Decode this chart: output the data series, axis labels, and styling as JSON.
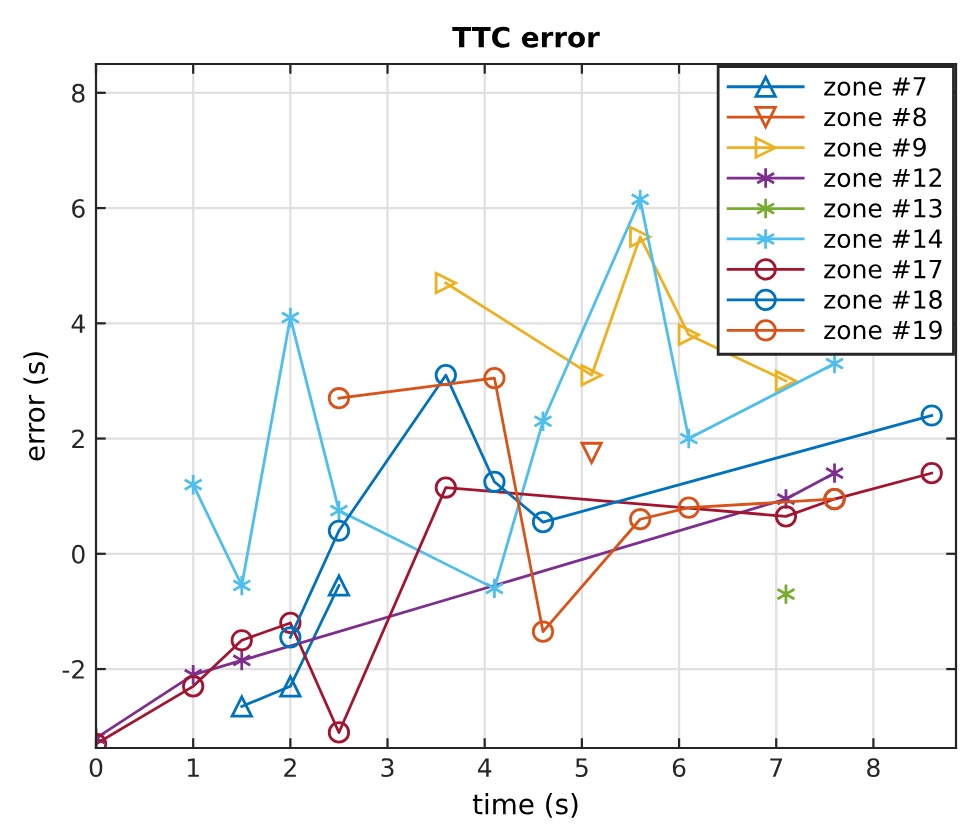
{
  "chart_data": {
    "type": "line",
    "title": "TTC error",
    "xlabel": "time (s)",
    "ylabel": "error (s)",
    "xlim": [
      0,
      8.85
    ],
    "ylim": [
      -3.37,
      8.5
    ],
    "xticks": [
      0,
      1,
      2,
      3,
      4,
      5,
      6,
      7,
      8
    ],
    "yticks": [
      -2,
      0,
      2,
      4,
      6,
      8
    ],
    "grid": true,
    "legend": "top right",
    "series": [
      {
        "name": "zone #7",
        "color": "#0072bd",
        "marker": "triangle",
        "x": [
          1.5,
          2,
          2.5
        ],
        "values": [
          -2.65,
          -2.3,
          -0.55
        ]
      },
      {
        "name": "zone #8",
        "color": "#d95319",
        "marker": "triangle-down",
        "x": [
          5.1
        ],
        "values": [
          1.75
        ]
      },
      {
        "name": "zone #9",
        "color": "#edb120",
        "marker": "triangle-right",
        "x": [
          3.6,
          5.1,
          5.6,
          6.1,
          7.1
        ],
        "values": [
          4.7,
          3.1,
          5.5,
          3.8,
          3.0
        ]
      },
      {
        "name": "zone #12",
        "color": "#7e2f8e",
        "marker": "cross",
        "x": [
          0,
          1,
          1.5,
          7.1,
          7.6
        ],
        "values": [
          -3.2,
          -2.1,
          -1.85,
          0.95,
          1.4
        ]
      },
      {
        "name": "zone #13",
        "color": "#77ac30",
        "marker": "cross",
        "x": [
          7.1
        ],
        "values": [
          -0.7
        ]
      },
      {
        "name": "zone #14",
        "color": "#4dbeee",
        "marker": "cross",
        "x": [
          1,
          1.5,
          2,
          2.5,
          4.1,
          4.6,
          5.6,
          6.1,
          7.6
        ],
        "values": [
          1.2,
          -0.55,
          4.1,
          0.75,
          -0.6,
          2.3,
          6.15,
          2.0,
          3.3
        ]
      },
      {
        "name": "zone #17",
        "color": "#a2142f",
        "marker": "circle",
        "x": [
          0,
          1,
          1.5,
          2,
          2.5,
          3.6,
          7.1,
          7.6,
          8.6
        ],
        "values": [
          -3.3,
          -2.3,
          -1.5,
          -1.2,
          -3.1,
          1.15,
          0.65,
          0.95,
          1.4
        ]
      },
      {
        "name": "zone #18",
        "color": "#0072bd",
        "marker": "circle",
        "x": [
          2,
          2.5,
          3.6,
          4.1,
          4.6,
          8.6
        ],
        "values": [
          -1.45,
          0.4,
          3.1,
          1.25,
          0.55,
          2.4
        ]
      },
      {
        "name": "zone #19",
        "color": "#d95319",
        "marker": "circle",
        "x": [
          2.5,
          4.1,
          4.6,
          5.6,
          6.1,
          7.6
        ],
        "values": [
          2.7,
          3.05,
          -1.35,
          0.6,
          0.8,
          0.95
        ]
      }
    ]
  }
}
